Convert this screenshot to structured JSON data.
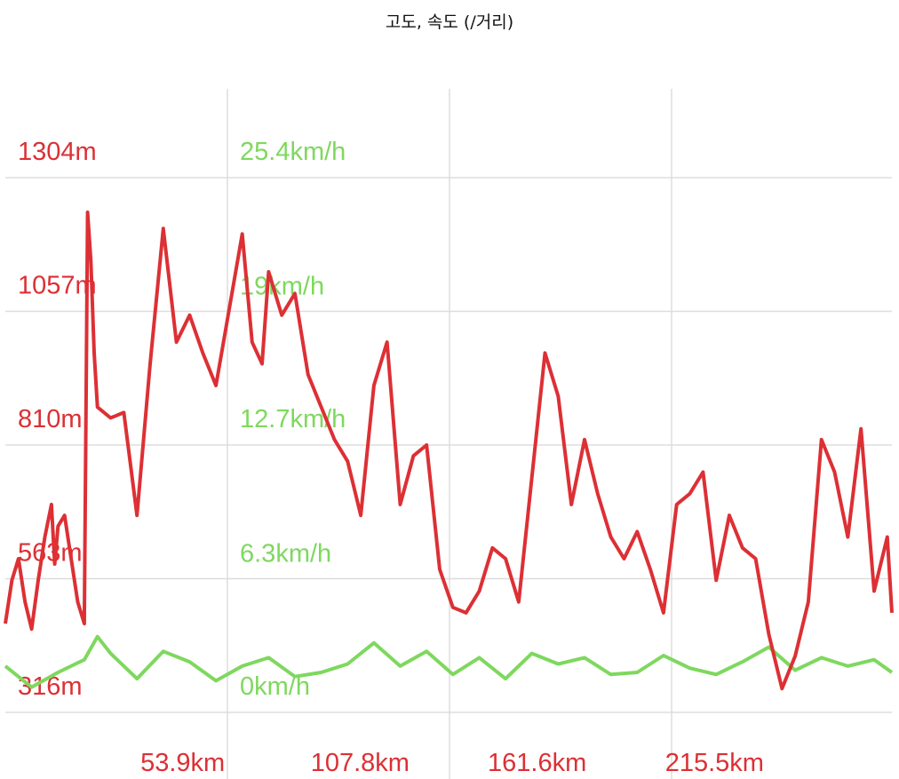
{
  "chart_data": {
    "type": "line",
    "title": "고도, 속도 (/거리)",
    "x_tick_labels": [
      "53.9km",
      "107.8km",
      "161.6km",
      "215.5km"
    ],
    "x_ticks_km": [
      53.9,
      107.8,
      161.6,
      215.5
    ],
    "xlim_km": [
      0,
      269.4
    ],
    "y_left_tick_labels": [
      "316m",
      "563m",
      "810m",
      "1057m",
      "1304m"
    ],
    "y_left_ticks": [
      316,
      563,
      810,
      1057,
      1304
    ],
    "ylim_left": [
      316,
      1304
    ],
    "y_right_tick_labels": [
      "0km/h",
      "6.3km/h",
      "12.7km/h",
      "19km/h",
      "25.4km/h"
    ],
    "y_right_ticks": [
      0,
      6.3,
      12.7,
      19,
      25.4
    ],
    "ylim_right": [
      0,
      25.4
    ],
    "grid": true,
    "series": [
      {
        "name": "",
        "axis": "left",
        "unit": "m",
        "x": [
          0,
          2,
          4,
          6,
          8,
          10,
          12,
          14,
          15,
          16,
          18,
          20,
          22,
          24,
          25,
          26,
          27,
          28,
          32,
          36,
          40,
          44,
          48,
          52,
          56,
          60,
          64,
          68,
          72,
          75,
          78,
          80,
          84,
          88,
          92,
          96,
          100,
          104,
          108,
          112,
          116,
          120,
          124,
          128,
          132,
          136,
          140,
          144,
          148,
          152,
          156,
          160,
          164,
          168,
          172,
          176,
          180,
          184,
          188,
          192,
          196,
          200,
          204,
          208,
          212,
          216,
          220,
          224,
          228,
          232,
          236,
          240,
          244,
          248,
          252,
          256,
          260,
          264,
          268,
          269.4
        ],
        "values": [
          480,
          560,
          600,
          520,
          470,
          560,
          640,
          700,
          590,
          660,
          680,
          600,
          520,
          480,
          1240,
          1150,
          980,
          880,
          860,
          870,
          680,
          960,
          1210,
          1000,
          1050,
          980,
          920,
          1060,
          1200,
          1000,
          960,
          1130,
          1050,
          1090,
          940,
          880,
          820,
          780,
          680,
          920,
          1000,
          700,
          790,
          810,
          580,
          510,
          500,
          540,
          620,
          600,
          520,
          750,
          980,
          900,
          700,
          820,
          720,
          640,
          600,
          650,
          580,
          500,
          700,
          720,
          760,
          560,
          680,
          620,
          600,
          460,
          360,
          420,
          520,
          820,
          760,
          640,
          840,
          540,
          640,
          500
        ]
      },
      {
        "name": "",
        "axis": "right",
        "unit": "km/h",
        "x": [
          0,
          8,
          16,
          24,
          28,
          32,
          40,
          48,
          56,
          64,
          72,
          80,
          88,
          96,
          104,
          112,
          120,
          128,
          136,
          144,
          152,
          160,
          168,
          176,
          184,
          192,
          200,
          208,
          216,
          224,
          232,
          240,
          248,
          256,
          264,
          269.4
        ],
        "values": [
          2.2,
          1.2,
          1.9,
          2.5,
          3.6,
          2.8,
          1.6,
          2.9,
          2.4,
          1.5,
          2.2,
          2.6,
          1.7,
          1.9,
          2.3,
          3.3,
          2.2,
          2.9,
          1.8,
          2.6,
          1.6,
          2.8,
          2.3,
          2.6,
          1.8,
          1.9,
          2.7,
          2.1,
          1.8,
          2.4,
          3.1,
          2.0,
          2.6,
          2.2,
          2.5,
          1.9
        ]
      }
    ],
    "colors": {
      "elevation": "#dc3035",
      "speed": "#7ed85e",
      "grid": "#dddddd",
      "title": "#111111"
    }
  }
}
